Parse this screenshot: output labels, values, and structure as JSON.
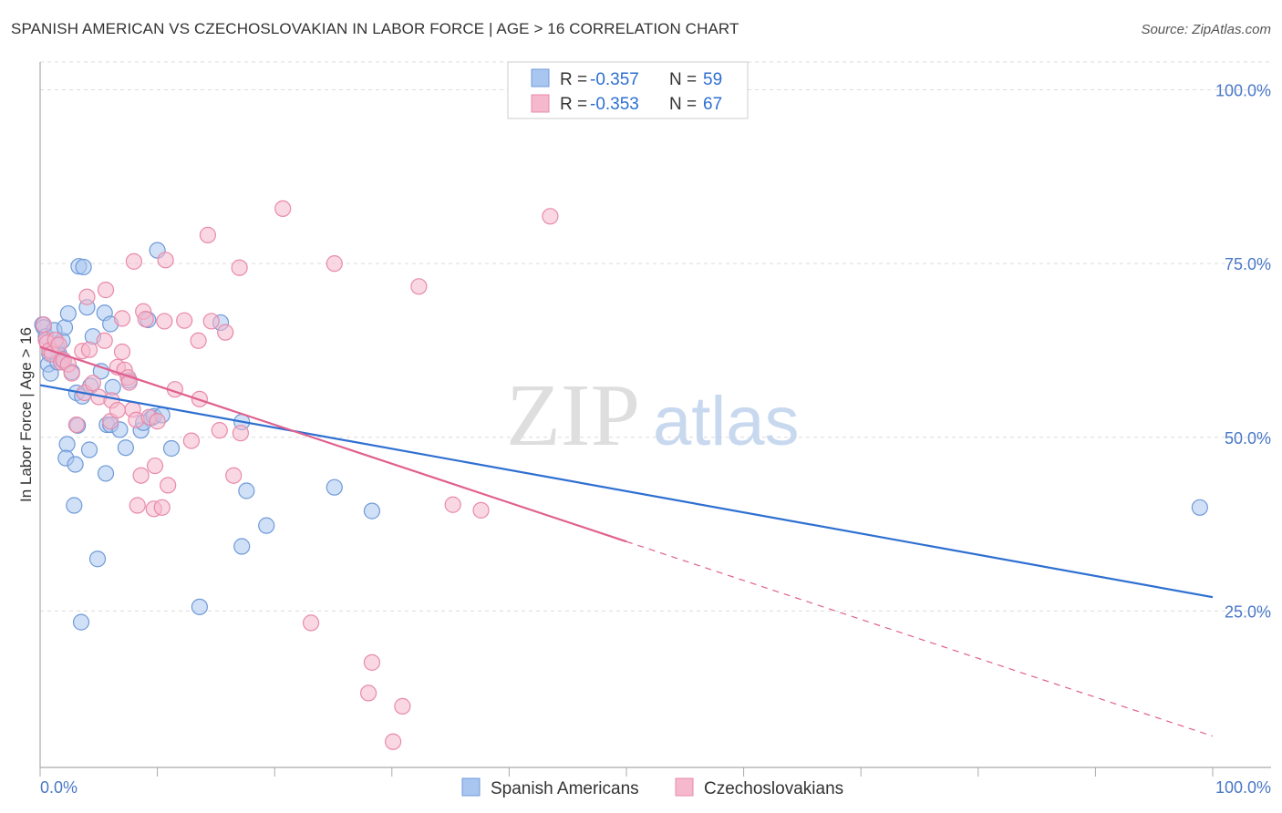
{
  "title": "SPANISH AMERICAN VS CZECHOSLOVAKIAN IN LABOR FORCE | AGE > 16 CORRELATION CHART",
  "source": "Source: ZipAtlas.com",
  "watermark": {
    "zip": "ZIP",
    "atlas": "atlas"
  },
  "colors": {
    "blue_fill": "#a9c6f0",
    "blue_stroke": "#6f9ad8",
    "blue_line": "#2e6fd1",
    "pink_fill": "#f5b8cc",
    "pink_stroke": "#e88aa9",
    "pink_line": "#e0608e",
    "accent_text": "#4a78c8",
    "grid": "#dcdcdc"
  },
  "legend_top": {
    "rows": [
      {
        "r_label": "R =",
        "r_value": "-0.357",
        "n_label": "N =",
        "n_value": "59"
      },
      {
        "r_label": "R =",
        "r_value": "-0.353",
        "n_label": "N =",
        "n_value": "67"
      }
    ]
  },
  "legend_bottom": {
    "items": [
      "Spanish Americans",
      "Czechoslovakians"
    ]
  },
  "chart_data": {
    "type": "scatter",
    "title": "SPANISH AMERICAN VS CZECHOSLOVAKIAN IN LABOR FORCE | AGE > 16 CORRELATION CHART",
    "xlabel": "",
    "ylabel": "In Labor Force | Age > 16",
    "xlim": [
      0,
      100
    ],
    "ylim": [
      2.5,
      104
    ],
    "x_tick_labels": [
      "0.0%",
      "100.0%"
    ],
    "y_ticks": [
      25,
      50,
      75,
      100
    ],
    "y_tick_labels": [
      "25.0%",
      "50.0%",
      "75.0%",
      "100.0%"
    ],
    "grid": true,
    "legend_position": "top-center",
    "series": [
      {
        "name": "Spanish Americans",
        "color": "#a9c6f0",
        "trend": {
          "x0": 0,
          "y0": 57.5,
          "x1": 100,
          "y1": 27.0,
          "solid_until": 100
        },
        "points": [
          [
            0.2,
            66.2
          ],
          [
            0.3,
            65.8
          ],
          [
            0.5,
            64.5
          ],
          [
            0.8,
            62.0
          ],
          [
            0.7,
            60.5
          ],
          [
            0.9,
            59.2
          ],
          [
            1.2,
            65.4
          ],
          [
            1.4,
            63.2
          ],
          [
            1.6,
            62.0
          ],
          [
            1.8,
            61.3
          ],
          [
            1.9,
            63.9
          ],
          [
            2.1,
            65.8
          ],
          [
            2.4,
            67.8
          ],
          [
            2.3,
            49.0
          ],
          [
            2.2,
            47.0
          ],
          [
            2.7,
            59.4
          ],
          [
            2.9,
            40.2
          ],
          [
            3.0,
            46.1
          ],
          [
            3.1,
            56.4
          ],
          [
            3.2,
            51.7
          ],
          [
            3.3,
            74.6
          ],
          [
            3.5,
            23.4
          ],
          [
            3.6,
            55.9
          ],
          [
            3.7,
            74.5
          ],
          [
            4.0,
            68.7
          ],
          [
            4.2,
            48.2
          ],
          [
            4.3,
            57.4
          ],
          [
            4.5,
            64.5
          ],
          [
            4.9,
            32.5
          ],
          [
            5.2,
            59.5
          ],
          [
            5.5,
            67.9
          ],
          [
            5.6,
            44.8
          ],
          [
            5.7,
            51.8
          ],
          [
            6.0,
            66.3
          ],
          [
            6.0,
            51.8
          ],
          [
            6.2,
            57.2
          ],
          [
            6.8,
            51.1
          ],
          [
            7.3,
            48.5
          ],
          [
            7.6,
            58.2
          ],
          [
            8.6,
            51.0
          ],
          [
            8.8,
            52.1
          ],
          [
            9.2,
            66.9
          ],
          [
            9.5,
            52.8
          ],
          [
            9.7,
            53.0
          ],
          [
            10.0,
            76.9
          ],
          [
            10.4,
            53.2
          ],
          [
            11.2,
            48.4
          ],
          [
            13.6,
            25.6
          ],
          [
            15.4,
            66.5
          ],
          [
            17.2,
            52.2
          ],
          [
            17.6,
            42.3
          ],
          [
            17.2,
            34.3
          ],
          [
            19.3,
            37.3
          ],
          [
            25.1,
            42.8
          ],
          [
            28.3,
            39.4
          ],
          [
            1.0,
            62.3
          ],
          [
            1.5,
            60.8
          ],
          [
            2.0,
            61.0
          ],
          [
            98.9,
            39.9
          ]
        ]
      },
      {
        "name": "Czechoslovakians",
        "color": "#f5b8cc",
        "trend": {
          "x0": 0,
          "y0": 63.0,
          "x1": 100,
          "y1": 7.0,
          "solid_until": 50
        },
        "points": [
          [
            0.3,
            66.2
          ],
          [
            0.5,
            64.0
          ],
          [
            0.6,
            63.6
          ],
          [
            0.8,
            62.5
          ],
          [
            1.0,
            62.0
          ],
          [
            1.3,
            64.0
          ],
          [
            1.6,
            63.3
          ],
          [
            1.8,
            60.8
          ],
          [
            2.0,
            61.1
          ],
          [
            2.4,
            60.5
          ],
          [
            2.7,
            59.2
          ],
          [
            3.1,
            51.8
          ],
          [
            3.6,
            62.4
          ],
          [
            3.8,
            56.4
          ],
          [
            4.0,
            70.2
          ],
          [
            4.2,
            62.6
          ],
          [
            4.5,
            57.8
          ],
          [
            5.0,
            55.8
          ],
          [
            5.5,
            63.9
          ],
          [
            5.6,
            71.2
          ],
          [
            6.0,
            52.3
          ],
          [
            6.1,
            55.3
          ],
          [
            6.6,
            60.1
          ],
          [
            6.6,
            53.9
          ],
          [
            7.0,
            67.1
          ],
          [
            7.0,
            62.3
          ],
          [
            7.2,
            59.7
          ],
          [
            7.5,
            58.6
          ],
          [
            7.6,
            57.9
          ],
          [
            7.9,
            54.0
          ],
          [
            8.0,
            75.3
          ],
          [
            8.2,
            52.5
          ],
          [
            8.3,
            40.2
          ],
          [
            8.6,
            44.5
          ],
          [
            8.8,
            68.1
          ],
          [
            9.0,
            67.0
          ],
          [
            9.3,
            52.9
          ],
          [
            9.7,
            39.7
          ],
          [
            9.8,
            45.9
          ],
          [
            10.0,
            52.3
          ],
          [
            10.4,
            39.9
          ],
          [
            10.6,
            66.7
          ],
          [
            10.7,
            75.5
          ],
          [
            10.9,
            43.1
          ],
          [
            11.5,
            56.9
          ],
          [
            12.3,
            66.8
          ],
          [
            12.9,
            49.5
          ],
          [
            13.5,
            63.9
          ],
          [
            13.6,
            55.5
          ],
          [
            14.3,
            79.1
          ],
          [
            14.6,
            66.7
          ],
          [
            15.3,
            51.0
          ],
          [
            15.8,
            65.1
          ],
          [
            16.5,
            44.5
          ],
          [
            17.0,
            74.4
          ],
          [
            17.1,
            50.6
          ],
          [
            20.7,
            82.9
          ],
          [
            23.1,
            23.3
          ],
          [
            25.1,
            75.0
          ],
          [
            28.0,
            13.2
          ],
          [
            28.3,
            17.6
          ],
          [
            30.1,
            6.2
          ],
          [
            30.9,
            11.3
          ],
          [
            32.3,
            71.7
          ],
          [
            35.2,
            40.3
          ],
          [
            37.6,
            39.5
          ],
          [
            43.5,
            81.8
          ]
        ]
      }
    ]
  }
}
